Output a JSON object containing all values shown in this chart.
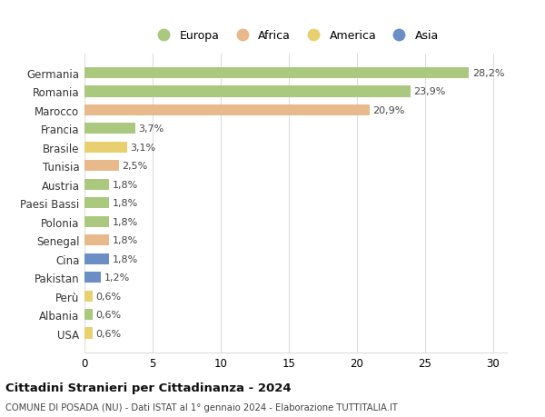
{
  "categories": [
    "Germania",
    "Romania",
    "Marocco",
    "Francia",
    "Brasile",
    "Tunisia",
    "Austria",
    "Paesi Bassi",
    "Polonia",
    "Senegal",
    "Cina",
    "Pakistan",
    "Perù",
    "Albania",
    "USA"
  ],
  "values": [
    28.2,
    23.9,
    20.9,
    3.7,
    3.1,
    2.5,
    1.8,
    1.8,
    1.8,
    1.8,
    1.8,
    1.2,
    0.6,
    0.6,
    0.6
  ],
  "labels": [
    "28,2%",
    "23,9%",
    "20,9%",
    "3,7%",
    "3,1%",
    "2,5%",
    "1,8%",
    "1,8%",
    "1,8%",
    "1,8%",
    "1,8%",
    "1,2%",
    "0,6%",
    "0,6%",
    "0,6%"
  ],
  "continent": [
    "Europa",
    "Europa",
    "Africa",
    "Europa",
    "America",
    "Africa",
    "Europa",
    "Europa",
    "Europa",
    "Africa",
    "Asia",
    "Asia",
    "America",
    "Europa",
    "America"
  ],
  "colors": {
    "Europa": "#aac87e",
    "Africa": "#e8b98a",
    "America": "#e8d070",
    "Asia": "#6b8fc4"
  },
  "title": "Cittadini Stranieri per Cittadinanza - 2024",
  "subtitle": "COMUNE DI POSADA (NU) - Dati ISTAT al 1° gennaio 2024 - Elaborazione TUTTITALIA.IT",
  "xlim": [
    0,
    31
  ],
  "xticks": [
    0,
    5,
    10,
    15,
    20,
    25,
    30
  ],
  "background_color": "#ffffff",
  "grid_color": "#dddddd",
  "bar_height": 0.6,
  "legend_order": [
    "Europa",
    "Africa",
    "America",
    "Asia"
  ]
}
